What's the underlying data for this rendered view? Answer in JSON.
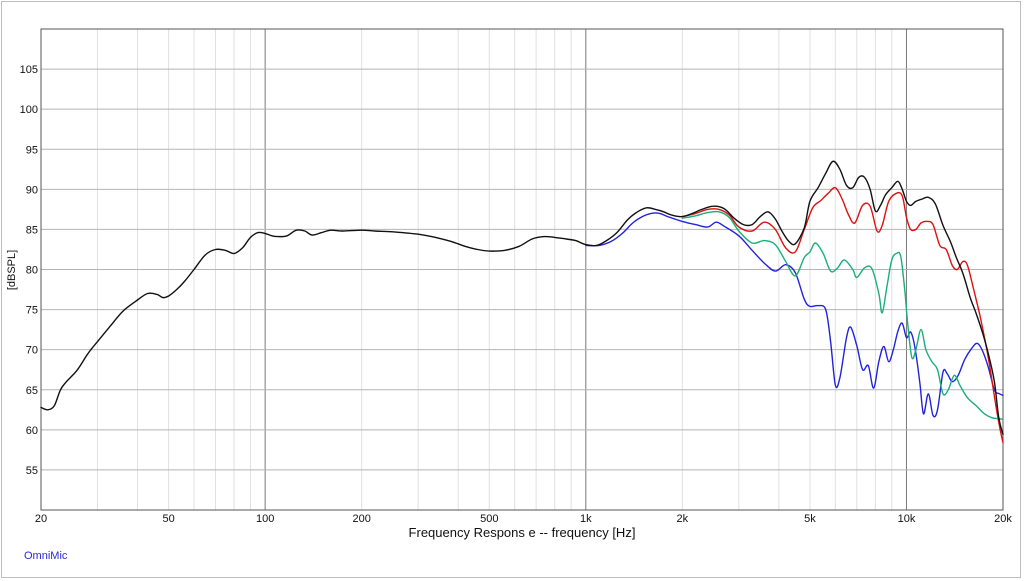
{
  "chart_data": {
    "type": "line",
    "title": "",
    "xlabel": "Frequency Respons e -- frequency [Hz]",
    "ylabel": "[dBSPL]",
    "xscale": "log",
    "xlim": [
      20,
      20000
    ],
    "ylim": [
      50,
      110
    ],
    "grid": true,
    "legend": "none",
    "brand": "OmniMic",
    "x_ticks": [
      {
        "value": 20,
        "label": "20"
      },
      {
        "value": 50,
        "label": "50"
      },
      {
        "value": 100,
        "label": "100"
      },
      {
        "value": 200,
        "label": "200"
      },
      {
        "value": 500,
        "label": "500"
      },
      {
        "value": 1000,
        "label": "1k"
      },
      {
        "value": 2000,
        "label": "2k"
      },
      {
        "value": 5000,
        "label": "5k"
      },
      {
        "value": 10000,
        "label": "10k"
      },
      {
        "value": 20000,
        "label": "20k"
      }
    ],
    "y_ticks": [
      55,
      60,
      65,
      70,
      75,
      80,
      85,
      90,
      95,
      100,
      105
    ],
    "series": [
      {
        "color": "#2222dd",
        "points": [
          [
            1000,
            83.0
          ],
          [
            1100,
            83.0
          ],
          [
            1200,
            83.5
          ],
          [
            1300,
            84.5
          ],
          [
            1400,
            85.8
          ],
          [
            1500,
            86.6
          ],
          [
            1600,
            87.0
          ],
          [
            1700,
            87.0
          ],
          [
            1800,
            86.6
          ],
          [
            2000,
            86.0
          ],
          [
            2200,
            85.6
          ],
          [
            2400,
            85.3
          ],
          [
            2550,
            85.9
          ],
          [
            2700,
            85.4
          ],
          [
            3000,
            84.2
          ],
          [
            3300,
            82.4
          ],
          [
            3600,
            80.8
          ],
          [
            3900,
            79.8
          ],
          [
            4200,
            80.6
          ],
          [
            4500,
            79.6
          ],
          [
            4800,
            76.3
          ],
          [
            5000,
            75.4
          ],
          [
            5300,
            75.5
          ],
          [
            5600,
            75.0
          ],
          [
            5800,
            71.0
          ],
          [
            6000,
            65.6
          ],
          [
            6200,
            66.5
          ],
          [
            6500,
            71.5
          ],
          [
            6700,
            72.8
          ],
          [
            7000,
            70.5
          ],
          [
            7300,
            67.5
          ],
          [
            7600,
            68.0
          ],
          [
            7900,
            65.2
          ],
          [
            8200,
            68.5
          ],
          [
            8500,
            70.4
          ],
          [
            8800,
            68.5
          ],
          [
            9100,
            70.0
          ],
          [
            9400,
            72.3
          ],
          [
            9700,
            73.3
          ],
          [
            10000,
            71.5
          ],
          [
            10300,
            72.2
          ],
          [
            10600,
            70.5
          ],
          [
            11000,
            66.0
          ],
          [
            11300,
            62.0
          ],
          [
            11700,
            64.5
          ],
          [
            12100,
            61.8
          ],
          [
            12500,
            62.5
          ],
          [
            13000,
            67.2
          ],
          [
            13400,
            67.0
          ],
          [
            13900,
            66.0
          ],
          [
            14500,
            66.8
          ],
          [
            15200,
            68.8
          ],
          [
            16000,
            70.2
          ],
          [
            16600,
            70.8
          ],
          [
            17200,
            70.0
          ],
          [
            18000,
            67.8
          ],
          [
            18800,
            65.0
          ],
          [
            19500,
            64.5
          ],
          [
            20000,
            64.3
          ]
        ]
      },
      {
        "color": "#1aae7a",
        "points": [
          [
            2000,
            86.4
          ],
          [
            2200,
            86.7
          ],
          [
            2400,
            87.1
          ],
          [
            2600,
            87.2
          ],
          [
            2800,
            86.5
          ],
          [
            3000,
            84.8
          ],
          [
            3300,
            83.3
          ],
          [
            3600,
            83.6
          ],
          [
            3900,
            83.1
          ],
          [
            4200,
            81.0
          ],
          [
            4500,
            79.2
          ],
          [
            4800,
            81.5
          ],
          [
            5000,
            82.2
          ],
          [
            5200,
            83.3
          ],
          [
            5500,
            82.0
          ],
          [
            5800,
            79.8
          ],
          [
            6100,
            80.2
          ],
          [
            6400,
            81.2
          ],
          [
            6800,
            80.0
          ],
          [
            7000,
            79.0
          ],
          [
            7400,
            80.2
          ],
          [
            7800,
            80.1
          ],
          [
            8200,
            77.0
          ],
          [
            8400,
            74.6
          ],
          [
            8700,
            78.0
          ],
          [
            9000,
            81.2
          ],
          [
            9300,
            82.0
          ],
          [
            9600,
            81.6
          ],
          [
            9900,
            77.0
          ],
          [
            10100,
            73.0
          ],
          [
            10400,
            69.0
          ],
          [
            10700,
            70.0
          ],
          [
            11100,
            72.5
          ],
          [
            11500,
            70.0
          ],
          [
            12000,
            68.5
          ],
          [
            12500,
            67.5
          ],
          [
            13000,
            64.5
          ],
          [
            13500,
            65.0
          ],
          [
            14100,
            66.8
          ],
          [
            14700,
            65.5
          ],
          [
            15500,
            64.0
          ],
          [
            16500,
            63.0
          ],
          [
            17500,
            62.0
          ],
          [
            18500,
            61.5
          ],
          [
            19300,
            61.4
          ],
          [
            20000,
            61.3
          ]
        ]
      },
      {
        "color": "#dd1111",
        "points": [
          [
            2000,
            86.6
          ],
          [
            2200,
            87.0
          ],
          [
            2400,
            87.5
          ],
          [
            2600,
            87.5
          ],
          [
            2800,
            86.8
          ],
          [
            3000,
            85.3
          ],
          [
            3300,
            84.8
          ],
          [
            3600,
            85.9
          ],
          [
            3900,
            85.0
          ],
          [
            4200,
            82.7
          ],
          [
            4500,
            82.2
          ],
          [
            4800,
            85.0
          ],
          [
            5100,
            87.7
          ],
          [
            5400,
            88.6
          ],
          [
            5700,
            89.5
          ],
          [
            6000,
            90.2
          ],
          [
            6300,
            88.8
          ],
          [
            6600,
            86.8
          ],
          [
            6900,
            85.8
          ],
          [
            7300,
            88.0
          ],
          [
            7700,
            87.9
          ],
          [
            8100,
            84.8
          ],
          [
            8400,
            85.5
          ],
          [
            8800,
            88.5
          ],
          [
            9300,
            89.5
          ],
          [
            9700,
            89.2
          ],
          [
            10000,
            86.5
          ],
          [
            10300,
            85.0
          ],
          [
            10700,
            85.0
          ],
          [
            11100,
            85.8
          ],
          [
            11600,
            86.0
          ],
          [
            12100,
            85.6
          ],
          [
            12700,
            83.0
          ],
          [
            13300,
            82.5
          ],
          [
            13900,
            80.5
          ],
          [
            14400,
            80.0
          ],
          [
            15000,
            81.0
          ],
          [
            15500,
            80.5
          ],
          [
            16200,
            77.5
          ],
          [
            17000,
            74.0
          ],
          [
            18000,
            69.0
          ],
          [
            19000,
            63.0
          ],
          [
            19600,
            60.0
          ],
          [
            20000,
            58.4
          ]
        ]
      },
      {
        "color": "#111111",
        "points": [
          [
            20,
            62.8
          ],
          [
            21,
            62.5
          ],
          [
            22,
            63.0
          ],
          [
            23,
            65.0
          ],
          [
            24,
            66.0
          ],
          [
            26,
            67.5
          ],
          [
            28,
            69.5
          ],
          [
            30,
            71.0
          ],
          [
            33,
            73.0
          ],
          [
            36,
            74.8
          ],
          [
            40,
            76.2
          ],
          [
            43,
            77.0
          ],
          [
            46,
            76.9
          ],
          [
            48,
            76.5
          ],
          [
            50,
            76.7
          ],
          [
            53,
            77.5
          ],
          [
            56,
            78.5
          ],
          [
            60,
            80.0
          ],
          [
            65,
            81.8
          ],
          [
            70,
            82.5
          ],
          [
            75,
            82.4
          ],
          [
            80,
            82.0
          ],
          [
            85,
            82.7
          ],
          [
            90,
            84.0
          ],
          [
            95,
            84.6
          ],
          [
            100,
            84.5
          ],
          [
            105,
            84.2
          ],
          [
            110,
            84.1
          ],
          [
            117,
            84.2
          ],
          [
            125,
            84.9
          ],
          [
            133,
            84.8
          ],
          [
            140,
            84.3
          ],
          [
            150,
            84.6
          ],
          [
            160,
            84.9
          ],
          [
            175,
            84.8
          ],
          [
            200,
            84.9
          ],
          [
            220,
            84.8
          ],
          [
            250,
            84.7
          ],
          [
            300,
            84.4
          ],
          [
            340,
            84.0
          ],
          [
            380,
            83.5
          ],
          [
            420,
            82.9
          ],
          [
            460,
            82.5
          ],
          [
            500,
            82.3
          ],
          [
            560,
            82.4
          ],
          [
            620,
            82.9
          ],
          [
            680,
            83.8
          ],
          [
            740,
            84.1
          ],
          [
            800,
            84.0
          ],
          [
            870,
            83.8
          ],
          [
            930,
            83.6
          ],
          [
            1000,
            83.1
          ],
          [
            1080,
            83.0
          ],
          [
            1150,
            83.5
          ],
          [
            1250,
            84.6
          ],
          [
            1350,
            86.2
          ],
          [
            1450,
            87.2
          ],
          [
            1550,
            87.7
          ],
          [
            1650,
            87.5
          ],
          [
            1750,
            87.2
          ],
          [
            1850,
            86.8
          ],
          [
            2000,
            86.6
          ],
          [
            2150,
            87.0
          ],
          [
            2300,
            87.5
          ],
          [
            2500,
            87.9
          ],
          [
            2700,
            87.6
          ],
          [
            2900,
            86.4
          ],
          [
            3100,
            85.6
          ],
          [
            3300,
            85.6
          ],
          [
            3500,
            86.6
          ],
          [
            3700,
            87.2
          ],
          [
            3900,
            86.3
          ],
          [
            4100,
            84.7
          ],
          [
            4300,
            83.5
          ],
          [
            4500,
            83.2
          ],
          [
            4800,
            85.2
          ],
          [
            5000,
            88.5
          ],
          [
            5300,
            90.2
          ],
          [
            5600,
            92.0
          ],
          [
            5900,
            93.5
          ],
          [
            6200,
            92.5
          ],
          [
            6500,
            90.5
          ],
          [
            6800,
            90.2
          ],
          [
            7100,
            91.5
          ],
          [
            7400,
            91.5
          ],
          [
            7700,
            90.0
          ],
          [
            8000,
            87.3
          ],
          [
            8300,
            88.0
          ],
          [
            8600,
            89.3
          ],
          [
            9000,
            90.2
          ],
          [
            9400,
            91.0
          ],
          [
            9700,
            90.0
          ],
          [
            10000,
            88.5
          ],
          [
            10300,
            88.0
          ],
          [
            10700,
            88.5
          ],
          [
            11200,
            88.8
          ],
          [
            11700,
            89.0
          ],
          [
            12300,
            88.2
          ],
          [
            13000,
            85.5
          ],
          [
            13700,
            83.5
          ],
          [
            14300,
            81.5
          ],
          [
            15000,
            79.5
          ],
          [
            15800,
            76.5
          ],
          [
            16500,
            74.5
          ],
          [
            17300,
            72.0
          ],
          [
            18000,
            69.5
          ],
          [
            18800,
            66.0
          ],
          [
            19400,
            61.5
          ],
          [
            20000,
            59.4
          ]
        ]
      }
    ]
  }
}
